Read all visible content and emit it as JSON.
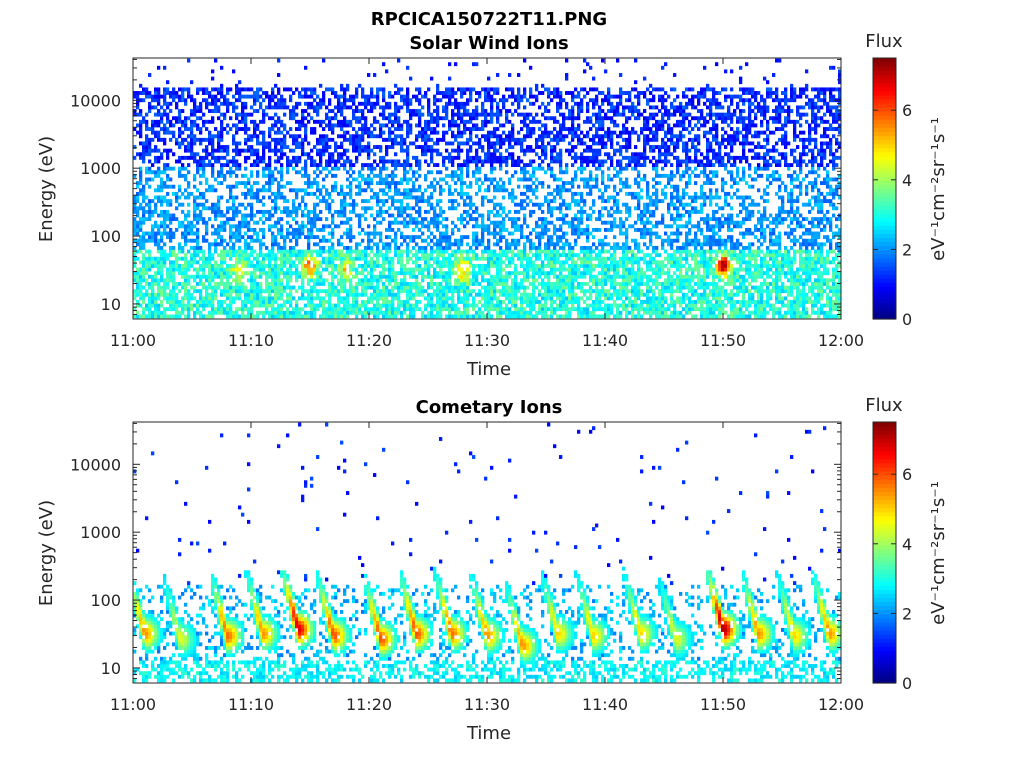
{
  "figure": {
    "filename": "RPCICA150722T11.PNG",
    "background": "#ffffff"
  },
  "chart_data": [
    {
      "type": "heatmap",
      "title": "Solar Wind Ions",
      "xlabel": "Time",
      "ylabel": "Energy (eV)",
      "x_ticks": [
        "11:00",
        "11:10",
        "11:20",
        "11:30",
        "11:40",
        "11:50",
        "12:00"
      ],
      "x_range": [
        "11:00",
        "12:00"
      ],
      "y_scale": "log",
      "y_ticks": [
        10,
        100,
        1000,
        10000
      ],
      "y_tick_labels": [
        "10",
        "100",
        "1000",
        "10000"
      ],
      "ylim": [
        6,
        42000
      ],
      "colorbar": {
        "title": "Flux",
        "label": "eV⁻¹cm⁻²sr⁻¹s⁻¹",
        "range": [
          0,
          7.5
        ],
        "ticks": [
          0,
          2,
          4,
          6
        ],
        "colormap": "jet"
      },
      "description_bands": [
        {
          "energy_range": [
            6,
            60
          ],
          "flux_approx": [
            2.5,
            4.5
          ],
          "note": "dense cyan-green band"
        },
        {
          "energy_range": [
            60,
            1000
          ],
          "flux_approx": [
            1.5,
            2.5
          ],
          "note": "light blue, scattered"
        },
        {
          "energy_range": [
            1000,
            15000
          ],
          "flux_approx": [
            0.8,
            1.6
          ],
          "note": "blue, scattered"
        }
      ],
      "peaks": [
        {
          "time": "11:50",
          "energy": 35,
          "flux": 7.2
        },
        {
          "time": "11:15",
          "energy": 35,
          "flux": 5.8
        },
        {
          "time": "11:09",
          "energy": 30,
          "flux": 4.8
        },
        {
          "time": "11:28",
          "energy": 30,
          "flux": 5.2
        },
        {
          "time": "11:18",
          "energy": 30,
          "flux": 4.8
        }
      ]
    },
    {
      "type": "heatmap",
      "title": "Cometary Ions",
      "xlabel": "Time",
      "ylabel": "Energy (eV)",
      "x_ticks": [
        "11:00",
        "11:10",
        "11:20",
        "11:30",
        "11:40",
        "11:50",
        "12:00"
      ],
      "x_range": [
        "11:00",
        "12:00"
      ],
      "y_scale": "log",
      "y_ticks": [
        10,
        100,
        1000,
        10000
      ],
      "y_tick_labels": [
        "10",
        "100",
        "1000",
        "10000"
      ],
      "ylim": [
        6,
        42000
      ],
      "colorbar": {
        "title": "Flux",
        "label": "eV⁻¹cm⁻²sr⁻¹s⁻¹",
        "range": [
          0,
          7.5
        ],
        "ticks": [
          0,
          2,
          4,
          6
        ],
        "colormap": "jet"
      },
      "bursts": [
        {
          "time": "11:01",
          "energy": 30,
          "flux": 5.5
        },
        {
          "time": "11:04",
          "energy": 25,
          "flux": 4.5
        },
        {
          "time": "11:08",
          "energy": 28,
          "flux": 5.8
        },
        {
          "time": "11:11",
          "energy": 30,
          "flux": 5.5
        },
        {
          "time": "11:14",
          "energy": 35,
          "flux": 6.8
        },
        {
          "time": "11:17",
          "energy": 28,
          "flux": 6.0
        },
        {
          "time": "11:21",
          "energy": 25,
          "flux": 6.0
        },
        {
          "time": "11:24",
          "energy": 30,
          "flux": 6.0
        },
        {
          "time": "11:27",
          "energy": 30,
          "flux": 5.8
        },
        {
          "time": "11:30",
          "energy": 28,
          "flux": 5.5
        },
        {
          "time": "11:33",
          "energy": 20,
          "flux": 5.5
        },
        {
          "time": "11:36",
          "energy": 30,
          "flux": 5.0
        },
        {
          "time": "11:39",
          "energy": 28,
          "flux": 5.0
        },
        {
          "time": "11:43",
          "energy": 30,
          "flux": 5.0
        },
        {
          "time": "11:46",
          "energy": 25,
          "flux": 4.5
        },
        {
          "time": "11:50",
          "energy": 35,
          "flux": 7.2
        },
        {
          "time": "11:53",
          "energy": 30,
          "flux": 5.5
        },
        {
          "time": "11:56",
          "energy": 28,
          "flux": 5.0
        },
        {
          "time": "11:59",
          "energy": 30,
          "flux": 5.5
        }
      ],
      "sparse_high_energy_flux_approx": [
        0.8,
        1.8
      ]
    }
  ]
}
